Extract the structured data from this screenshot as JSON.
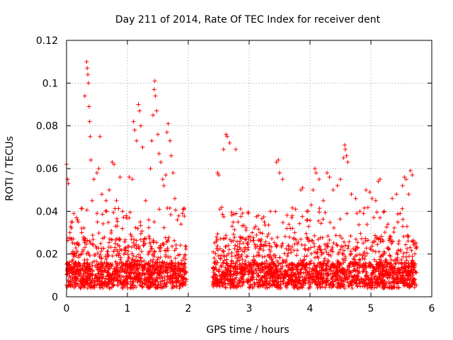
{
  "chart_data": {
    "type": "scatter",
    "title": "Day 211 of 2014, Rate Of TEC Index for receiver dent",
    "xlabel": "GPS time / hours",
    "ylabel": "ROTI / TECUs",
    "xlim": [
      0,
      6
    ],
    "ylim": [
      0,
      0.12
    ],
    "x_ticks": [
      "0",
      "1",
      "2",
      "3",
      "4",
      "5",
      "6"
    ],
    "y_ticks": [
      "0",
      "0.02",
      "0.04",
      "0.06",
      "0.08",
      "0.1",
      "0.12"
    ],
    "grid": true,
    "marker": "+",
    "color": "#ff0000",
    "data_gap_hours": [
      1.97,
      2.4
    ],
    "series": [
      {
        "name": "ROTI",
        "points": [
          [
            0.0,
            0.062
          ],
          [
            0.02,
            0.055
          ],
          [
            0.03,
            0.053
          ],
          [
            0.05,
            0.011
          ],
          [
            0.08,
            0.035
          ],
          [
            0.12,
            0.039
          ],
          [
            0.18,
            0.036
          ],
          [
            0.25,
            0.03
          ],
          [
            0.3,
            0.094
          ],
          [
            0.33,
            0.11
          ],
          [
            0.34,
            0.107
          ],
          [
            0.35,
            0.104
          ],
          [
            0.36,
            0.1
          ],
          [
            0.37,
            0.089
          ],
          [
            0.38,
            0.082
          ],
          [
            0.39,
            0.075
          ],
          [
            0.4,
            0.064
          ],
          [
            0.42,
            0.045
          ],
          [
            0.45,
            0.055
          ],
          [
            0.5,
            0.058
          ],
          [
            0.53,
            0.06
          ],
          [
            0.55,
            0.075
          ],
          [
            0.58,
            0.048
          ],
          [
            0.65,
            0.045
          ],
          [
            0.7,
            0.05
          ],
          [
            0.75,
            0.063
          ],
          [
            0.78,
            0.062
          ],
          [
            0.82,
            0.045
          ],
          [
            0.88,
            0.056
          ],
          [
            0.92,
            0.04
          ],
          [
            0.98,
            0.038
          ],
          [
            1.03,
            0.056
          ],
          [
            1.08,
            0.055
          ],
          [
            1.1,
            0.082
          ],
          [
            1.12,
            0.078
          ],
          [
            1.15,
            0.073
          ],
          [
            1.18,
            0.09
          ],
          [
            1.2,
            0.087
          ],
          [
            1.22,
            0.08
          ],
          [
            1.25,
            0.07
          ],
          [
            1.3,
            0.045
          ],
          [
            1.35,
            0.036
          ],
          [
            1.38,
            0.06
          ],
          [
            1.4,
            0.073
          ],
          [
            1.42,
            0.085
          ],
          [
            1.44,
            0.097
          ],
          [
            1.45,
            0.101
          ],
          [
            1.46,
            0.094
          ],
          [
            1.48,
            0.087
          ],
          [
            1.5,
            0.076
          ],
          [
            1.52,
            0.067
          ],
          [
            1.55,
            0.063
          ],
          [
            1.58,
            0.055
          ],
          [
            1.6,
            0.052
          ],
          [
            1.63,
            0.057
          ],
          [
            1.65,
            0.077
          ],
          [
            1.67,
            0.081
          ],
          [
            1.7,
            0.073
          ],
          [
            1.72,
            0.066
          ],
          [
            1.75,
            0.058
          ],
          [
            1.78,
            0.046
          ],
          [
            1.82,
            0.036
          ],
          [
            1.88,
            0.034
          ],
          [
            1.93,
            0.041
          ],
          [
            2.48,
            0.058
          ],
          [
            2.5,
            0.057
          ],
          [
            2.52,
            0.041
          ],
          [
            2.58,
            0.069
          ],
          [
            2.62,
            0.076
          ],
          [
            2.64,
            0.075
          ],
          [
            2.68,
            0.072
          ],
          [
            2.72,
            0.033
          ],
          [
            2.78,
            0.069
          ],
          [
            2.85,
            0.028
          ],
          [
            2.95,
            0.027
          ],
          [
            3.05,
            0.03
          ],
          [
            3.15,
            0.038
          ],
          [
            3.25,
            0.035
          ],
          [
            3.35,
            0.04
          ],
          [
            3.45,
            0.063
          ],
          [
            3.48,
            0.064
          ],
          [
            3.5,
            0.058
          ],
          [
            3.55,
            0.055
          ],
          [
            3.62,
            0.032
          ],
          [
            3.7,
            0.037
          ],
          [
            3.75,
            0.03
          ],
          [
            3.85,
            0.05
          ],
          [
            3.88,
            0.051
          ],
          [
            3.95,
            0.04
          ],
          [
            4.02,
            0.043
          ],
          [
            4.05,
            0.05
          ],
          [
            4.08,
            0.06
          ],
          [
            4.1,
            0.058
          ],
          [
            4.15,
            0.055
          ],
          [
            4.22,
            0.045
          ],
          [
            4.28,
            0.058
          ],
          [
            4.32,
            0.056
          ],
          [
            4.38,
            0.05
          ],
          [
            4.45,
            0.052
          ],
          [
            4.5,
            0.055
          ],
          [
            4.55,
            0.065
          ],
          [
            4.57,
            0.071
          ],
          [
            4.58,
            0.069
          ],
          [
            4.6,
            0.066
          ],
          [
            4.62,
            0.063
          ],
          [
            4.68,
            0.048
          ],
          [
            4.75,
            0.046
          ],
          [
            4.82,
            0.04
          ],
          [
            4.88,
            0.039
          ],
          [
            4.92,
            0.05
          ],
          [
            4.98,
            0.049
          ],
          [
            5.02,
            0.046
          ],
          [
            5.08,
            0.045
          ],
          [
            5.12,
            0.054
          ],
          [
            5.15,
            0.055
          ],
          [
            5.22,
            0.04
          ],
          [
            5.28,
            0.034
          ],
          [
            5.35,
            0.046
          ],
          [
            5.42,
            0.048
          ],
          [
            5.48,
            0.039
          ],
          [
            5.52,
            0.052
          ],
          [
            5.55,
            0.056
          ],
          [
            5.58,
            0.055
          ],
          [
            5.62,
            0.048
          ],
          [
            5.65,
            0.059
          ],
          [
            5.68,
            0.057
          ],
          [
            5.72,
            0.025
          ],
          [
            5.75,
            0.023
          ]
        ]
      }
    ]
  }
}
